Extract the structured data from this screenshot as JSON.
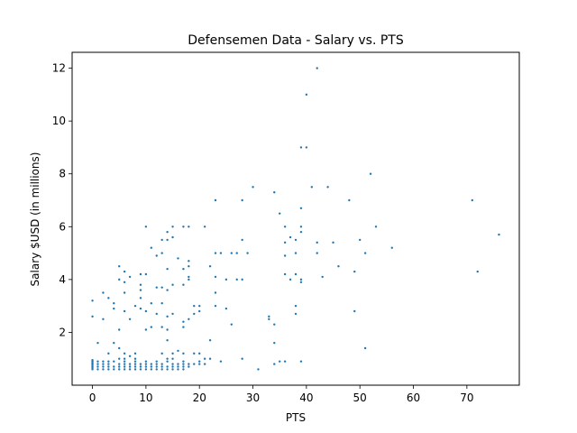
{
  "chart_data": {
    "type": "scatter",
    "title": "Defensemen Data - Salary vs. PTS",
    "xlabel": "PTS",
    "ylabel": "Salary $USD (in millions)",
    "xlim": [
      -3.8,
      79.8
    ],
    "ylim": [
      0.0,
      12.6
    ],
    "xticks": [
      0,
      10,
      20,
      30,
      40,
      50,
      60,
      70
    ],
    "yticks": [
      2,
      4,
      6,
      8,
      10,
      12
    ],
    "marker_color": "#1f77b4",
    "grid": false,
    "series": [
      {
        "points": [
          [
            0,
            0.6
          ],
          [
            0,
            0.65
          ],
          [
            0,
            0.7
          ],
          [
            0,
            0.75
          ],
          [
            0,
            0.8
          ],
          [
            0,
            0.85
          ],
          [
            0,
            0.9
          ],
          [
            0,
            0.95
          ],
          [
            0,
            2.6
          ],
          [
            0,
            3.2
          ],
          [
            1,
            0.6
          ],
          [
            1,
            0.7
          ],
          [
            1,
            0.8
          ],
          [
            1,
            0.9
          ],
          [
            1,
            1.6
          ],
          [
            2,
            0.6
          ],
          [
            2,
            0.7
          ],
          [
            2,
            0.8
          ],
          [
            2,
            0.9
          ],
          [
            2,
            2.5
          ],
          [
            2,
            3.5
          ],
          [
            3,
            0.6
          ],
          [
            3,
            0.7
          ],
          [
            3,
            0.8
          ],
          [
            3,
            0.9
          ],
          [
            3,
            1.2
          ],
          [
            3,
            3.3
          ],
          [
            4,
            0.6
          ],
          [
            4,
            0.7
          ],
          [
            4,
            0.9
          ],
          [
            4,
            1.6
          ],
          [
            4,
            2.9
          ],
          [
            4,
            3.1
          ],
          [
            5,
            0.6
          ],
          [
            5,
            0.7
          ],
          [
            5,
            0.8
          ],
          [
            5,
            1.0
          ],
          [
            5,
            1.4
          ],
          [
            5,
            2.1
          ],
          [
            5,
            4.0
          ],
          [
            5,
            4.5
          ],
          [
            6,
            0.6
          ],
          [
            6,
            0.7
          ],
          [
            6,
            0.8
          ],
          [
            6,
            0.9
          ],
          [
            6,
            1.0
          ],
          [
            6,
            1.2
          ],
          [
            6,
            2.8
          ],
          [
            6,
            3.5
          ],
          [
            6,
            3.9
          ],
          [
            6,
            4.3
          ],
          [
            7,
            0.6
          ],
          [
            7,
            0.7
          ],
          [
            7,
            0.8
          ],
          [
            7,
            1.1
          ],
          [
            7,
            2.5
          ],
          [
            7,
            4.1
          ],
          [
            8,
            0.6
          ],
          [
            8,
            0.7
          ],
          [
            8,
            0.8
          ],
          [
            8,
            0.9
          ],
          [
            8,
            1.0
          ],
          [
            8,
            1.2
          ],
          [
            8,
            3.0
          ],
          [
            9,
            0.6
          ],
          [
            9,
            0.7
          ],
          [
            9,
            0.8
          ],
          [
            9,
            2.9
          ],
          [
            9,
            3.3
          ],
          [
            9,
            3.6
          ],
          [
            9,
            3.8
          ],
          [
            9,
            4.2
          ],
          [
            10,
            0.6
          ],
          [
            10,
            0.7
          ],
          [
            10,
            0.8
          ],
          [
            10,
            0.9
          ],
          [
            10,
            2.1
          ],
          [
            10,
            2.8
          ],
          [
            10,
            4.2
          ],
          [
            10,
            6.0
          ],
          [
            11,
            0.6
          ],
          [
            11,
            0.7
          ],
          [
            11,
            0.8
          ],
          [
            11,
            2.2
          ],
          [
            11,
            3.1
          ],
          [
            11,
            5.2
          ],
          [
            12,
            0.6
          ],
          [
            12,
            0.7
          ],
          [
            12,
            0.8
          ],
          [
            12,
            0.9
          ],
          [
            12,
            2.7
          ],
          [
            12,
            3.7
          ],
          [
            12,
            4.9
          ],
          [
            13,
            0.6
          ],
          [
            13,
            0.7
          ],
          [
            13,
            0.8
          ],
          [
            13,
            1.2
          ],
          [
            13,
            2.2
          ],
          [
            13,
            3.1
          ],
          [
            13,
            3.7
          ],
          [
            13,
            5.0
          ],
          [
            13,
            5.5
          ],
          [
            14,
            0.6
          ],
          [
            14,
            0.7
          ],
          [
            14,
            0.9
          ],
          [
            14,
            1.0
          ],
          [
            14,
            1.7
          ],
          [
            14,
            2.1
          ],
          [
            14,
            2.6
          ],
          [
            14,
            3.6
          ],
          [
            14,
            4.4
          ],
          [
            14,
            5.5
          ],
          [
            14,
            5.8
          ],
          [
            15,
            0.6
          ],
          [
            15,
            0.7
          ],
          [
            15,
            0.8
          ],
          [
            15,
            1.0
          ],
          [
            15,
            1.2
          ],
          [
            15,
            2.7
          ],
          [
            15,
            3.8
          ],
          [
            15,
            5.6
          ],
          [
            15,
            6.0
          ],
          [
            16,
            0.6
          ],
          [
            16,
            0.7
          ],
          [
            16,
            0.8
          ],
          [
            16,
            1.3
          ],
          [
            16,
            4.8
          ],
          [
            17,
            0.6
          ],
          [
            17,
            0.7
          ],
          [
            17,
            0.8
          ],
          [
            17,
            0.9
          ],
          [
            17,
            1.2
          ],
          [
            17,
            2.2
          ],
          [
            17,
            2.4
          ],
          [
            17,
            3.8
          ],
          [
            17,
            4.4
          ],
          [
            17,
            6.0
          ],
          [
            18,
            0.7
          ],
          [
            18,
            0.8
          ],
          [
            18,
            2.5
          ],
          [
            18,
            4.0
          ],
          [
            18,
            4.1
          ],
          [
            18,
            4.5
          ],
          [
            18,
            4.7
          ],
          [
            18,
            6.0
          ],
          [
            19,
            0.8
          ],
          [
            19,
            1.2
          ],
          [
            19,
            2.7
          ],
          [
            19,
            3.0
          ],
          [
            20,
            0.8
          ],
          [
            20,
            0.9
          ],
          [
            20,
            1.2
          ],
          [
            20,
            2.8
          ],
          [
            20,
            3.0
          ],
          [
            21,
            0.8
          ],
          [
            21,
            1.0
          ],
          [
            21,
            6.0
          ],
          [
            22,
            1.0
          ],
          [
            22,
            1.7
          ],
          [
            22,
            4.5
          ],
          [
            23,
            3.0
          ],
          [
            23,
            3.5
          ],
          [
            23,
            4.1
          ],
          [
            23,
            5.0
          ],
          [
            23,
            7.0
          ],
          [
            24,
            0.9
          ],
          [
            24,
            5.0
          ],
          [
            25,
            2.9
          ],
          [
            25,
            4.0
          ],
          [
            26,
            2.3
          ],
          [
            26,
            5.0
          ],
          [
            27,
            4.0
          ],
          [
            27,
            5.0
          ],
          [
            28,
            1.0
          ],
          [
            28,
            4.0
          ],
          [
            28,
            5.5
          ],
          [
            28,
            7.0
          ],
          [
            29,
            5.0
          ],
          [
            30,
            7.5
          ],
          [
            31,
            0.6
          ],
          [
            33,
            2.5
          ],
          [
            33,
            2.6
          ],
          [
            34,
            0.8
          ],
          [
            34,
            1.6
          ],
          [
            34,
            2.3
          ],
          [
            34,
            7.3
          ],
          [
            35,
            0.9
          ],
          [
            35,
            6.5
          ],
          [
            36,
            0.9
          ],
          [
            36,
            4.2
          ],
          [
            36,
            4.9
          ],
          [
            36,
            5.4
          ],
          [
            36,
            6.0
          ],
          [
            37,
            4.0
          ],
          [
            37,
            5.6
          ],
          [
            38,
            2.7
          ],
          [
            38,
            3.0
          ],
          [
            38,
            4.2
          ],
          [
            38,
            5.0
          ],
          [
            38,
            5.5
          ],
          [
            39,
            0.9
          ],
          [
            39,
            3.9
          ],
          [
            39,
            4.0
          ],
          [
            39,
            5.8
          ],
          [
            39,
            6.0
          ],
          [
            39,
            6.7
          ],
          [
            39,
            9.0
          ],
          [
            40,
            9.0
          ],
          [
            40,
            11.0
          ],
          [
            41,
            7.5
          ],
          [
            42,
            5.0
          ],
          [
            42,
            5.4
          ],
          [
            42,
            12.0
          ],
          [
            43,
            4.1
          ],
          [
            44,
            7.5
          ],
          [
            45,
            5.4
          ],
          [
            46,
            4.5
          ],
          [
            48,
            7.0
          ],
          [
            49,
            2.8
          ],
          [
            49,
            4.3
          ],
          [
            50,
            5.5
          ],
          [
            51,
            1.4
          ],
          [
            51,
            5.0
          ],
          [
            52,
            8.0
          ],
          [
            53,
            6.0
          ],
          [
            56,
            5.2
          ],
          [
            71,
            7.0
          ],
          [
            72,
            4.3
          ],
          [
            76,
            5.7
          ]
        ]
      }
    ]
  }
}
